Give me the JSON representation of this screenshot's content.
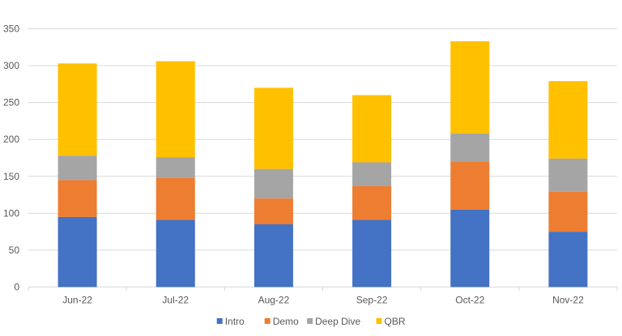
{
  "chart_data": {
    "type": "bar",
    "stacked": true,
    "categories": [
      "Jun-22",
      "Jul-22",
      "Aug-22",
      "Sep-22",
      "Oct-22",
      "Nov-22"
    ],
    "series": [
      {
        "name": "Intro",
        "color": "#4472C4",
        "values": [
          95,
          91,
          85,
          91,
          105,
          75
        ]
      },
      {
        "name": "Demo",
        "color": "#ED7D31",
        "values": [
          50,
          57,
          35,
          46,
          65,
          54
        ]
      },
      {
        "name": "Deep Dive",
        "color": "#A5A5A5",
        "values": [
          33,
          28,
          40,
          32,
          38,
          45
        ]
      },
      {
        "name": "QBR",
        "color": "#FFC000",
        "values": [
          125,
          130,
          110,
          91,
          125,
          105
        ]
      }
    ],
    "ylim": [
      0,
      350
    ],
    "yticks": [
      0,
      50,
      100,
      150,
      200,
      250,
      300,
      350
    ],
    "grid": true,
    "legend": "bottom"
  }
}
